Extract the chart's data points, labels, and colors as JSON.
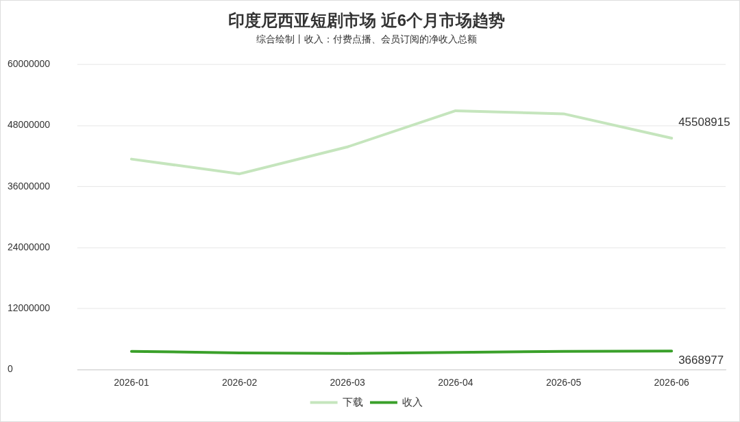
{
  "chart_data": {
    "type": "line",
    "title": "印度尼西亚短剧市场 近6个月市场趋势",
    "subtitle": "综合绘制丨收入：付费点播、会员订阅的净收入总额",
    "categories": [
      "2026-01",
      "2026-02",
      "2026-03",
      "2026-04",
      "2026-05",
      "2026-06"
    ],
    "series": [
      {
        "name": "下载",
        "color": "#c5e5bd",
        "values": [
          41400000,
          38500000,
          43800000,
          50900000,
          50300000,
          45508915
        ],
        "value_labels": [
          null,
          null,
          null,
          null,
          null,
          "45508915"
        ]
      },
      {
        "name": "收入",
        "color": "#3aa02a",
        "values": [
          3600000,
          3300000,
          3200000,
          3400000,
          3600000,
          3668977
        ],
        "value_labels": [
          null,
          null,
          null,
          null,
          null,
          "3668977"
        ]
      }
    ],
    "ylim": [
      0,
      60000000
    ],
    "yticks": [
      0,
      12000000,
      24000000,
      36000000,
      48000000,
      60000000
    ],
    "grid": "y",
    "legend": "bottom",
    "marker": "none",
    "line_style": "solid"
  }
}
